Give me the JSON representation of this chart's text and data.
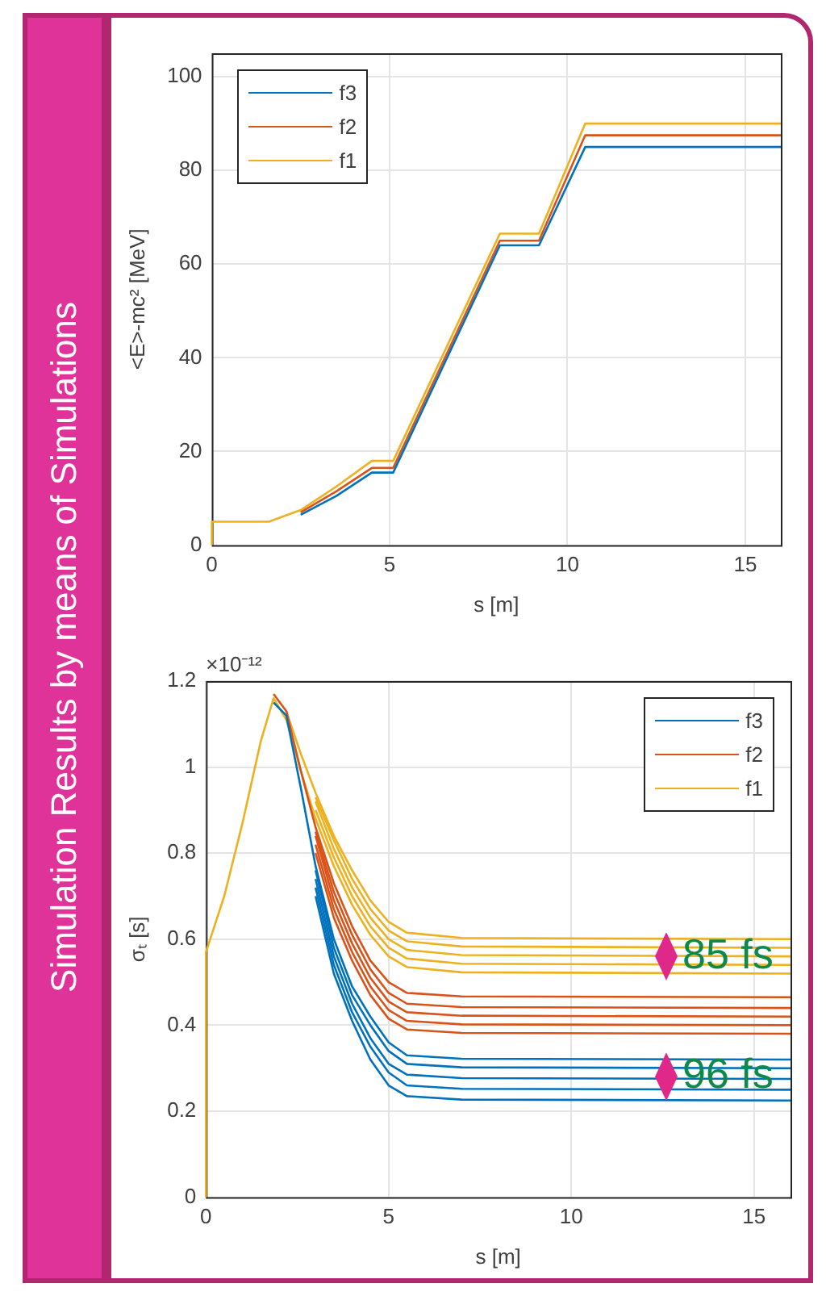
{
  "chart_data": [
    {
      "type": "line",
      "title": "Simulation Results by means of Simulations",
      "xlabel": "s [m]",
      "ylabel": "<E>-mc² [MeV]",
      "xlim": [
        0,
        16
      ],
      "xticks": [
        0,
        5,
        10,
        15
      ],
      "ylim": [
        0,
        105
      ],
      "yticks": [
        0,
        20,
        40,
        60,
        80,
        100
      ],
      "grid": true,
      "legend": "top left",
      "series": [
        {
          "name": "f3",
          "color": "#0072bd",
          "x": [
            2.5,
            3.5,
            4.5,
            5.1,
            8.1,
            9.2,
            10.5,
            16
          ],
          "values": [
            6.5,
            10.5,
            15.5,
            15.5,
            64,
            64,
            85,
            85
          ]
        },
        {
          "name": "f2",
          "color": "#d95319",
          "x": [
            2.5,
            3.5,
            4.5,
            5.1,
            8.1,
            9.2,
            10.5,
            16
          ],
          "values": [
            7,
            11.5,
            16.5,
            16.5,
            65,
            65,
            87.5,
            87.5
          ]
        },
        {
          "name": "f1",
          "color": "#edb120",
          "x": [
            0,
            0,
            1.6,
            2.5,
            3.5,
            4.5,
            5.1,
            8.1,
            9.2,
            10.5,
            16
          ],
          "values": [
            0,
            5,
            5,
            7.5,
            12.5,
            18,
            18,
            66.5,
            66.5,
            90,
            90
          ]
        }
      ]
    },
    {
      "type": "line",
      "xlabel": "s [m]",
      "ylabel": "σₜ [s]",
      "xlim": [
        0,
        16
      ],
      "xticks": [
        0,
        5,
        10,
        15
      ],
      "ylim": [
        0,
        1.2
      ],
      "yticks": [
        0,
        0.2,
        0.4,
        0.6,
        0.8,
        1,
        1.2
      ],
      "grid": true,
      "legend": "top right",
      "annotations": [
        "×10⁻¹²",
        {
          "text": "85 fs",
          "x": 12.6,
          "y": 0.56
        },
        {
          "text": "96 fs",
          "x": 12.6,
          "y": 0.28
        }
      ],
      "series": [
        {
          "name": "f3",
          "color": "#0072bd",
          "x": [
            1.85,
            2.2,
            2.6,
            3,
            3.5,
            4,
            4.5,
            5,
            5.5,
            7,
            16
          ],
          "values": [
            1.15,
            1.12,
            0.95,
            0.77,
            0.6,
            0.49,
            0.42,
            0.36,
            0.33,
            0.322,
            0.32
          ]
        },
        {
          "color": "#0072bd",
          "x": [
            3,
            3.5,
            4,
            4.5,
            5,
            5.5,
            7,
            16
          ],
          "values": [
            0.76,
            0.58,
            0.47,
            0.4,
            0.34,
            0.31,
            0.302,
            0.3
          ]
        },
        {
          "color": "#0072bd",
          "x": [
            3,
            3.5,
            4,
            4.5,
            5,
            5.5,
            7,
            16
          ],
          "values": [
            0.74,
            0.56,
            0.45,
            0.37,
            0.31,
            0.285,
            0.277,
            0.275
          ]
        },
        {
          "color": "#0072bd",
          "x": [
            3,
            3.5,
            4,
            4.5,
            5,
            5.5,
            7,
            16
          ],
          "values": [
            0.72,
            0.54,
            0.43,
            0.35,
            0.29,
            0.26,
            0.252,
            0.25
          ]
        },
        {
          "color": "#0072bd",
          "x": [
            3,
            3.5,
            4,
            4.5,
            5,
            5.5,
            7,
            16
          ],
          "values": [
            0.7,
            0.52,
            0.41,
            0.32,
            0.26,
            0.235,
            0.227,
            0.225
          ]
        },
        {
          "name": "f2",
          "color": "#d95319",
          "x": [
            1.85,
            2.2,
            2.6,
            3,
            3.5,
            4,
            4.5,
            5,
            5.5,
            7,
            16
          ],
          "values": [
            1.17,
            1.13,
            0.99,
            0.86,
            0.73,
            0.63,
            0.55,
            0.5,
            0.475,
            0.467,
            0.465
          ]
        },
        {
          "color": "#d95319",
          "x": [
            3,
            3.5,
            4,
            4.5,
            5,
            5.5,
            7,
            16
          ],
          "values": [
            0.85,
            0.71,
            0.61,
            0.53,
            0.475,
            0.45,
            0.442,
            0.44
          ]
        },
        {
          "color": "#d95319",
          "x": [
            3,
            3.5,
            4,
            4.5,
            5,
            5.5,
            7,
            16
          ],
          "values": [
            0.84,
            0.69,
            0.59,
            0.51,
            0.455,
            0.43,
            0.422,
            0.42
          ]
        },
        {
          "color": "#d95319",
          "x": [
            3,
            3.5,
            4,
            4.5,
            5,
            5.5,
            7,
            16
          ],
          "values": [
            0.82,
            0.67,
            0.57,
            0.49,
            0.435,
            0.41,
            0.402,
            0.4
          ]
        },
        {
          "color": "#d95319",
          "x": [
            3,
            3.5,
            4,
            4.5,
            5,
            5.5,
            7,
            16
          ],
          "values": [
            0.8,
            0.65,
            0.55,
            0.47,
            0.415,
            0.39,
            0.382,
            0.38
          ]
        },
        {
          "name": "f1",
          "color": "#edb120",
          "x": [
            2.2,
            2.6,
            3,
            3.5,
            4,
            4.5,
            5,
            5.5,
            7,
            16
          ],
          "values": [
            1.13,
            1.03,
            0.94,
            0.84,
            0.76,
            0.69,
            0.64,
            0.615,
            0.603,
            0.6
          ]
        },
        {
          "color": "#edb120",
          "x": [
            3,
            3.5,
            4,
            4.5,
            5,
            5.5,
            7,
            16
          ],
          "values": [
            0.93,
            0.83,
            0.74,
            0.67,
            0.62,
            0.595,
            0.583,
            0.58
          ]
        },
        {
          "color": "#edb120",
          "x": [
            3,
            3.5,
            4,
            4.5,
            5,
            5.5,
            7,
            16
          ],
          "values": [
            0.92,
            0.81,
            0.72,
            0.65,
            0.6,
            0.575,
            0.563,
            0.56
          ]
        },
        {
          "color": "#edb120",
          "x": [
            3,
            3.5,
            4,
            4.5,
            5,
            5.5,
            7,
            16
          ],
          "values": [
            0.9,
            0.79,
            0.7,
            0.63,
            0.58,
            0.555,
            0.543,
            0.54
          ]
        },
        {
          "color": "#edb120",
          "x": [
            0,
            0,
            0.5,
            1,
            1.5,
            1.85,
            2.2,
            2.6,
            3,
            3.5,
            4,
            4.5,
            5,
            5.5,
            7,
            16
          ],
          "values": [
            0,
            0.57,
            0.7,
            0.87,
            1.06,
            1.16,
            1.11,
            0.99,
            0.88,
            0.77,
            0.68,
            0.61,
            0.56,
            0.535,
            0.523,
            0.52
          ]
        }
      ]
    }
  ]
}
